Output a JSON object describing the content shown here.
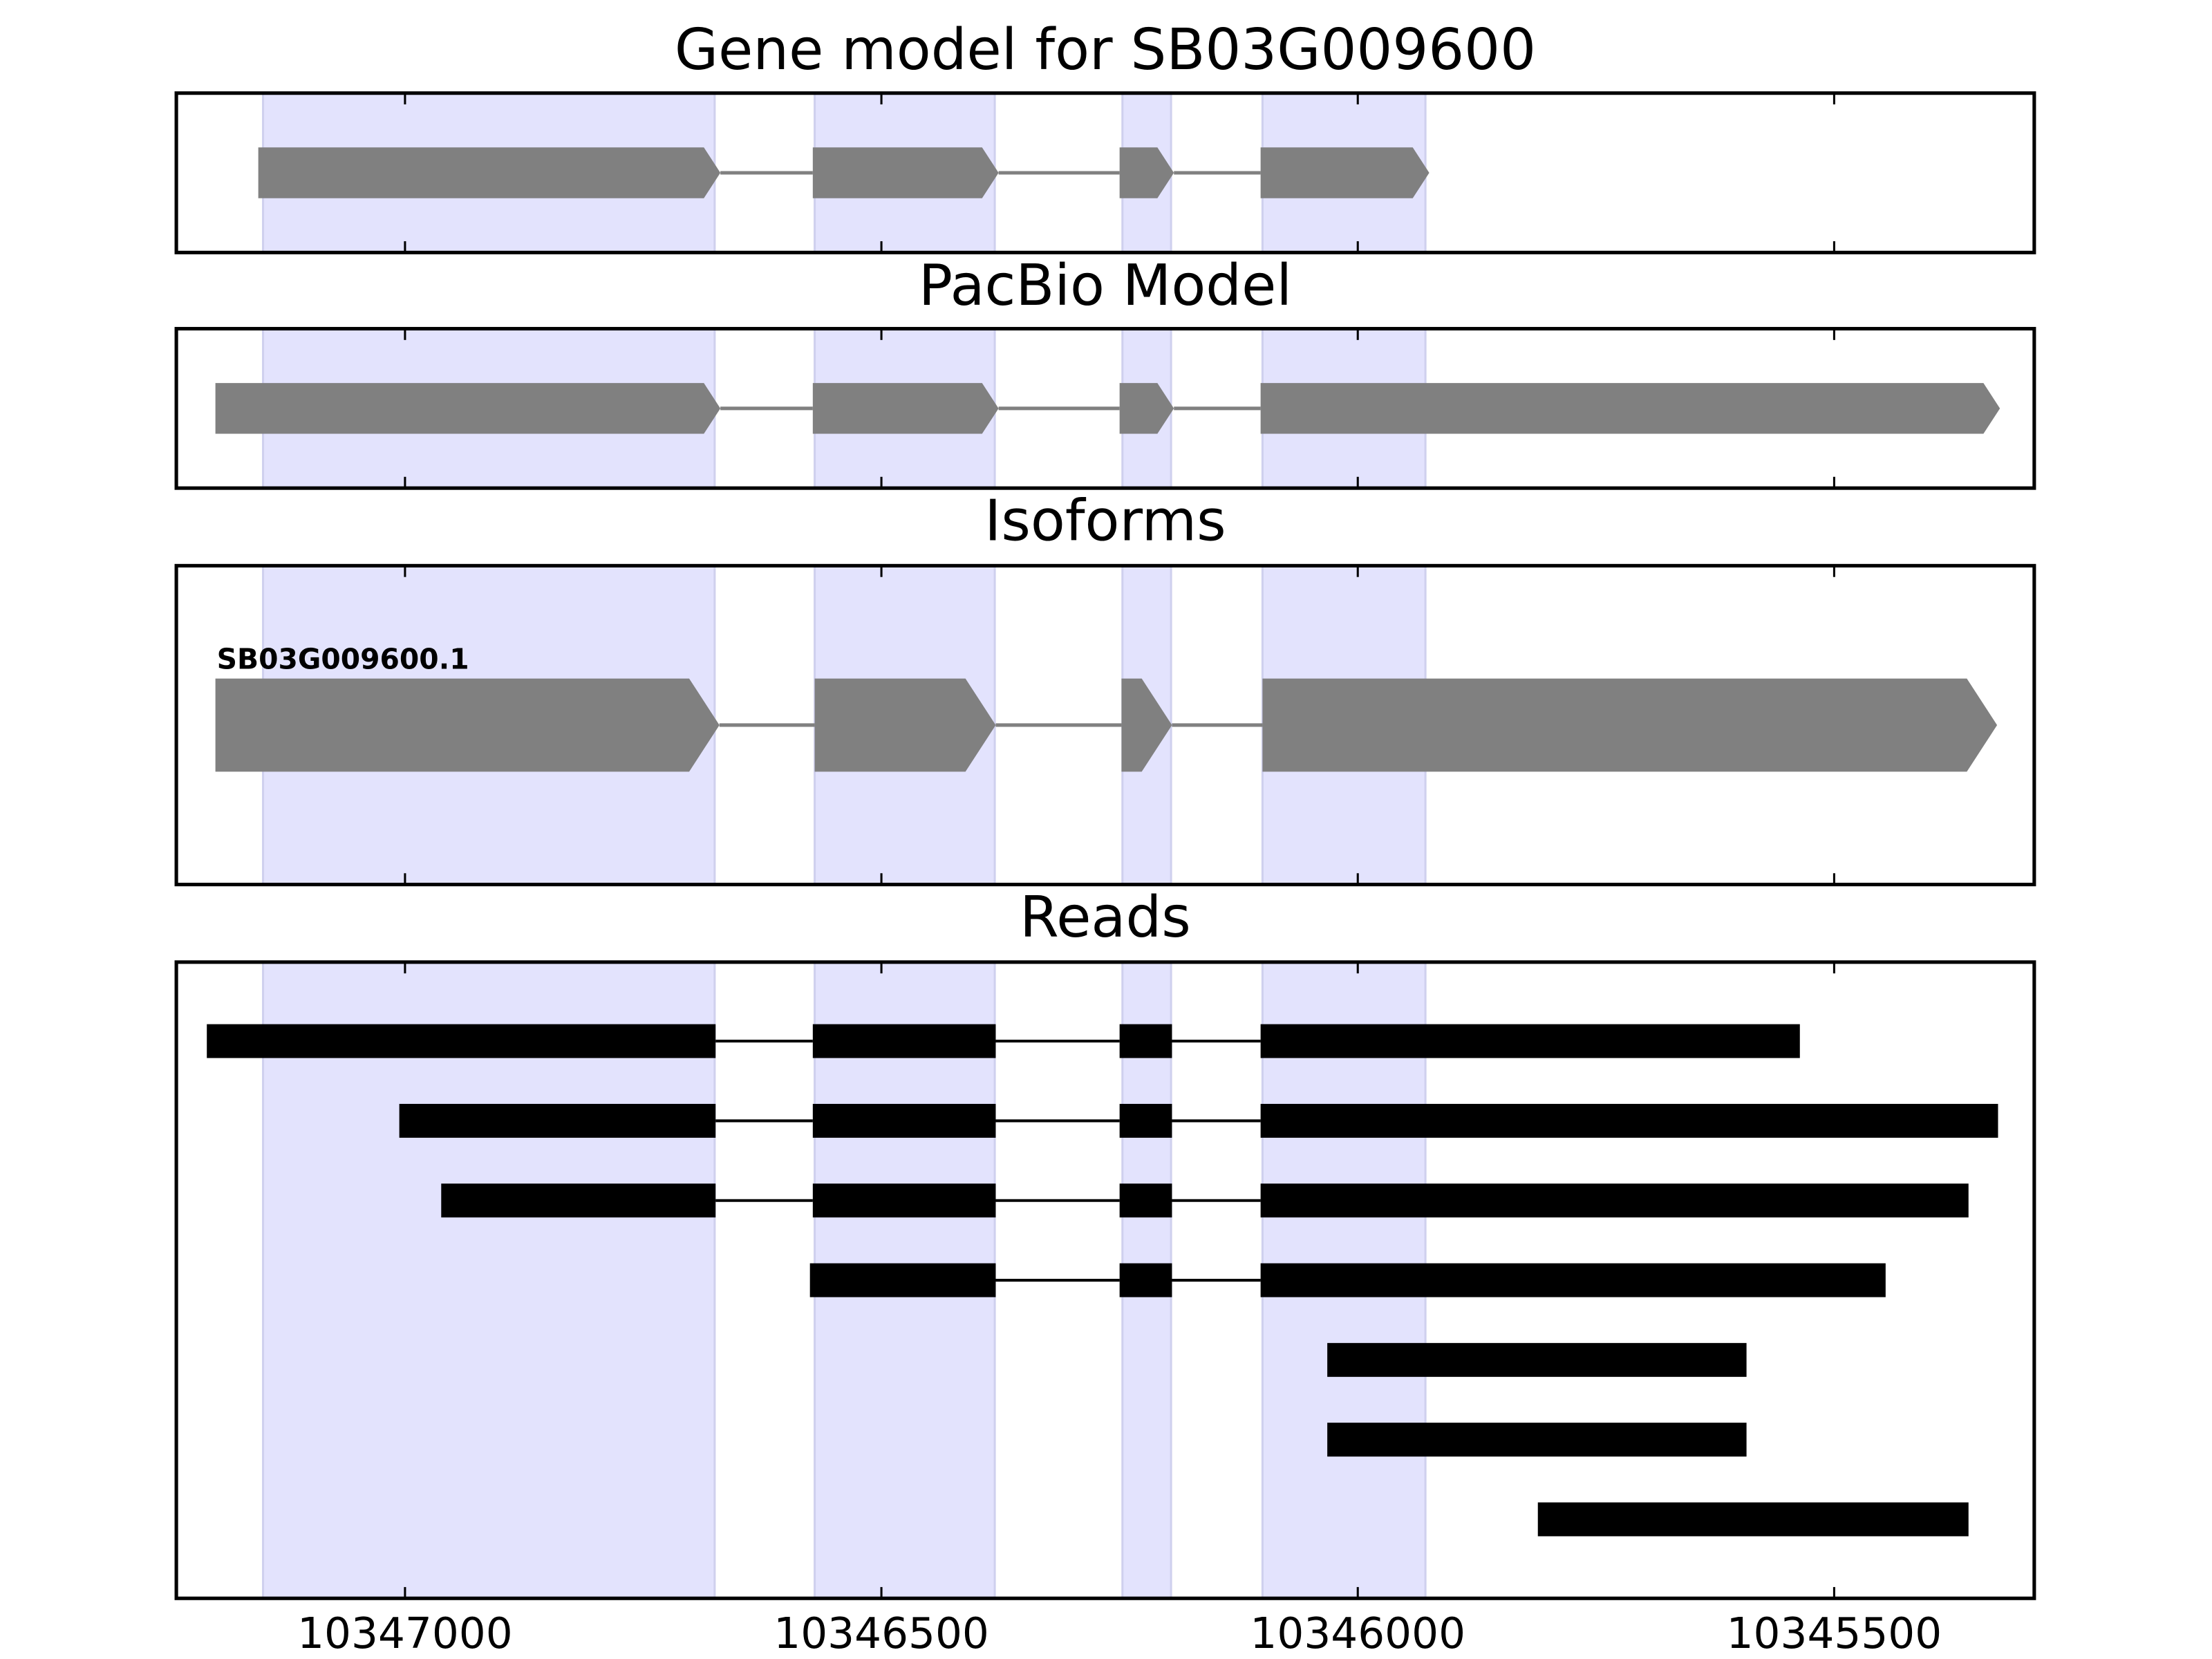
{
  "chart_data": [
    {
      "type": "gene",
      "title": "Gene model for SB03G009600",
      "xlim": [
        10347240,
        10345290
      ],
      "xticks": [
        10347000,
        10346500,
        10346000,
        10345500
      ],
      "highlights": [
        [
          10347149,
          10346675
        ],
        [
          10346570,
          10346381
        ],
        [
          10346247,
          10346196
        ],
        [
          10346100,
          10345929
        ]
      ],
      "highlight_color": "#e3e3fd",
      "color": "#808080",
      "transcripts": [
        {
          "exons": [
            [
              10347154,
              10346669
            ],
            [
              10346572,
              10346377
            ],
            [
              10346250,
              10346193
            ],
            [
              10346102,
              10345925
            ]
          ]
        }
      ]
    },
    {
      "type": "gene",
      "title": "PacBio Model",
      "xlim": [
        10347240,
        10345290
      ],
      "xticks": [
        10347000,
        10346500,
        10346000,
        10345500
      ],
      "highlights": [
        [
          10347149,
          10346675
        ],
        [
          10346570,
          10346381
        ],
        [
          10346247,
          10346196
        ],
        [
          10346100,
          10345929
        ]
      ],
      "highlight_color": "#e3e3fd",
      "color": "#808080",
      "transcripts": [
        {
          "exons": [
            [
              10347199,
              10346669
            ],
            [
              10346572,
              10346377
            ],
            [
              10346250,
              10346193
            ],
            [
              10346102,
              10345326
            ]
          ]
        }
      ]
    },
    {
      "type": "gene",
      "title": "Isoforms",
      "xlim": [
        10347240,
        10345290
      ],
      "xticks": [
        10347000,
        10346500,
        10346000,
        10345500
      ],
      "highlights": [
        [
          10347149,
          10346675
        ],
        [
          10346570,
          10346381
        ],
        [
          10346247,
          10346196
        ],
        [
          10346100,
          10345929
        ]
      ],
      "highlight_color": "#e3e3fd",
      "color": "#808080",
      "transcripts": [
        {
          "name": "SB03G009600.1",
          "exons": [
            [
              10347199,
              10346670
            ],
            [
              10346570,
              10346380
            ],
            [
              10346248,
              10346195
            ],
            [
              10346100,
              10345329
            ]
          ]
        }
      ]
    },
    {
      "type": "reads",
      "title": "Reads",
      "xlim": [
        10347240,
        10345290
      ],
      "xticks": [
        10347000,
        10346500,
        10346000,
        10345500
      ],
      "highlights": [
        [
          10347149,
          10346675
        ],
        [
          10346570,
          10346381
        ],
        [
          10346247,
          10346196
        ],
        [
          10346100,
          10345929
        ]
      ],
      "highlight_color": "#e3e3fd",
      "color": "#000000",
      "transcripts": [
        {
          "exons": [
            [
              10347208,
              10346674
            ],
            [
              10346572,
              10346380
            ],
            [
              10346250,
              10346195
            ],
            [
              10346102,
              10345536
            ]
          ]
        },
        {
          "exons": [
            [
              10347006,
              10346674
            ],
            [
              10346572,
              10346380
            ],
            [
              10346250,
              10346195
            ],
            [
              10346102,
              10345328
            ]
          ]
        },
        {
          "exons": [
            [
              10346962,
              10346674
            ],
            [
              10346572,
              10346380
            ],
            [
              10346250,
              10346195
            ],
            [
              10346102,
              10345359
            ]
          ]
        },
        {
          "exons": [
            [
              10346575,
              10346380
            ],
            [
              10346250,
              10346195
            ],
            [
              10346102,
              10345446
            ]
          ]
        },
        {
          "exons": [
            [
              10346032,
              10345592
            ]
          ]
        },
        {
          "exons": [
            [
              10346032,
              10345592
            ]
          ]
        },
        {
          "exons": [
            [
              10345811,
              10345359
            ]
          ]
        }
      ]
    }
  ]
}
